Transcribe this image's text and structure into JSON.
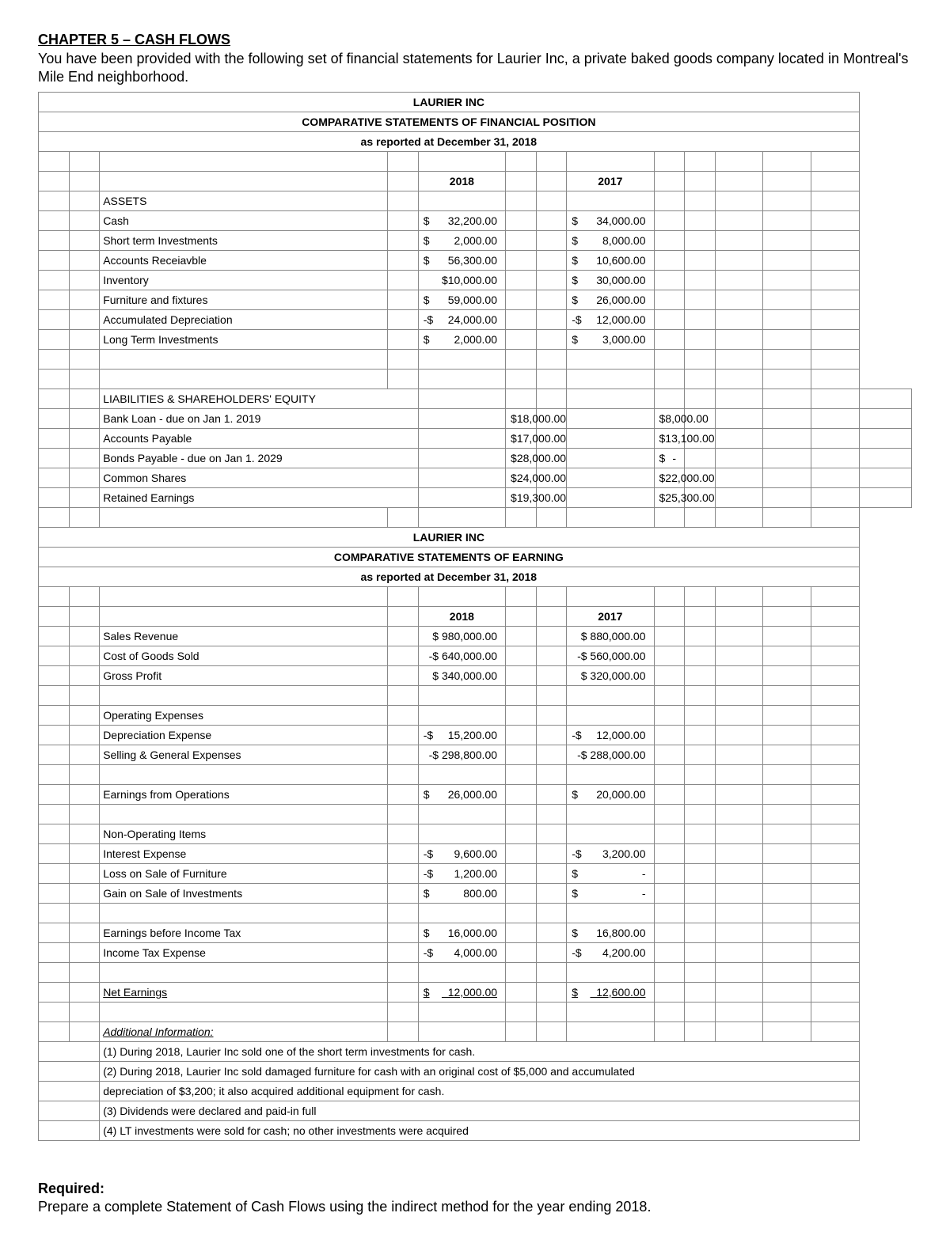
{
  "chapter_title": "CHAPTER 5 – CASH FLOWS",
  "intro": "You have been provided with the following set of financial statements for Laurier Inc, a private baked goods company located in Montreal's Mile End neighborhood.",
  "company": "LAURIER INC",
  "sofp_title": "COMPARATIVE STATEMENTS OF FINANCIAL POSITION",
  "asof": "as reported at December 31, 2018",
  "year1": "2018",
  "year2": "2017",
  "assets_h": "ASSETS",
  "rows_assets": [
    {
      "label": "Cash",
      "v1s": "$",
      "v1": "32,200.00",
      "v2s": "$",
      "v2": "34,000.00"
    },
    {
      "label": "Short term Investments",
      "v1s": "$",
      "v1": "2,000.00",
      "v2s": "$",
      "v2": "8,000.00"
    },
    {
      "label": "Accounts Receiavble",
      "v1s": "$",
      "v1": "56,300.00",
      "v2s": "$",
      "v2": "10,600.00"
    },
    {
      "label": "Inventory",
      "v1s": "",
      "v1": "$10,000.00",
      "v2s": "$",
      "v2": "30,000.00"
    },
    {
      "label": "Furniture and fixtures",
      "v1s": "$",
      "v1": "59,000.00",
      "v2s": "$",
      "v2": "26,000.00"
    },
    {
      "label": "Accumulated Depreciation",
      "v1s": "-$",
      "v1": "24,000.00",
      "v2s": "-$",
      "v2": "12,000.00"
    },
    {
      "label": "Long Term Investments",
      "v1s": "$",
      "v1": "2,000.00",
      "v2s": "$",
      "v2": "3,000.00"
    }
  ],
  "liab_h": "LIABILITIES & SHAREHOLDERS' EQUITY",
  "rows_liab": [
    {
      "label": "Bank Loan - due on Jan 1. 2019",
      "v1s": "$",
      "v1": "18,000.00",
      "v2s": "$",
      "v2": "8,000.00"
    },
    {
      "label": "Accounts Payable",
      "v1s": "$",
      "v1": "17,000.00",
      "v2s": "$",
      "v2": "13,100.00"
    },
    {
      "label": "Bonds Payable - due on Jan 1. 2029",
      "v1s": "$",
      "v1": "28,000.00",
      "v2s": "$",
      "v2": "-"
    },
    {
      "label": "Common Shares",
      "v1s": "$",
      "v1": "24,000.00",
      "v2s": "$",
      "v2": "22,000.00"
    },
    {
      "label": "Retained Earnings",
      "v1s": "$",
      "v1": "19,300.00",
      "v2s": "$",
      "v2": "25,300.00"
    }
  ],
  "earn_title": "COMPARATIVE STATEMENTS OF EARNING",
  "rows_rev": [
    {
      "label": "Sales Revenue",
      "v1s": "",
      "v1": "$ 980,000.00",
      "v2s": "",
      "v2": "$ 880,000.00"
    },
    {
      "label": "Cost of Goods Sold",
      "v1s": "",
      "v1": "-$ 640,000.00",
      "v2s": "",
      "v2": "-$ 560,000.00"
    },
    {
      "label": "Gross Profit",
      "v1s": "",
      "v1": "$ 340,000.00",
      "v2s": "",
      "v2": "$ 320,000.00"
    }
  ],
  "opex_h": "Operating Expenses",
  "rows_opex": [
    {
      "label": "Depreciation Expense",
      "v1s": "-$",
      "v1": "15,200.00",
      "v2s": "-$",
      "v2": "12,000.00"
    },
    {
      "label": "Selling & General Expenses",
      "v1s": "",
      "v1": "-$ 298,800.00",
      "v2s": "",
      "v2": "-$ 288,000.00"
    }
  ],
  "efo": {
    "label": "Earnings from Operations",
    "v1s": "$",
    "v1": "26,000.00",
    "v2s": "$",
    "v2": "20,000.00"
  },
  "nonop_h": "Non-Operating Items",
  "rows_nonop": [
    {
      "label": "Interest Expense",
      "v1s": "-$",
      "v1": "9,600.00",
      "v2s": "-$",
      "v2": "3,200.00"
    },
    {
      "label": "Loss on Sale of Furniture",
      "v1s": "-$",
      "v1": "1,200.00",
      "v2s": "$",
      "v2": "-"
    },
    {
      "label": "Gain on Sale of Investments",
      "v1s": "$",
      "v1": "800.00",
      "v2s": "$",
      "v2": "-"
    }
  ],
  "ebt": {
    "label": "Earnings before Income Tax",
    "v1s": "$",
    "v1": "16,000.00",
    "v2s": "$",
    "v2": "16,800.00"
  },
  "tax": {
    "label": "Income Tax Expense",
    "v1s": "-$",
    "v1": "4,000.00",
    "v2s": "-$",
    "v2": "4,200.00"
  },
  "net": {
    "label": "Net Earnings",
    "v1s": "$",
    "v1": "12,000.00",
    "v2s": "$",
    "v2": "12,600.00"
  },
  "addl_h": "Additional Information:",
  "addl": [
    "(1) During 2018, Laurier Inc sold one of the short term investments for cash.",
    "(2) During 2018, Laurier Inc sold damaged furniture for cash with an original cost of $5,000 and accumulated",
    "      depreciation of $3,200; it also acquired additional equipment for cash.",
    "(3) Dividends were declared and paid-in full",
    "(4) LT investments were sold for cash; no other investments were acquired"
  ],
  "req_h": "Required:",
  "req_t": "Prepare a complete Statement of Cash Flows using the indirect method for the year ending 2018."
}
